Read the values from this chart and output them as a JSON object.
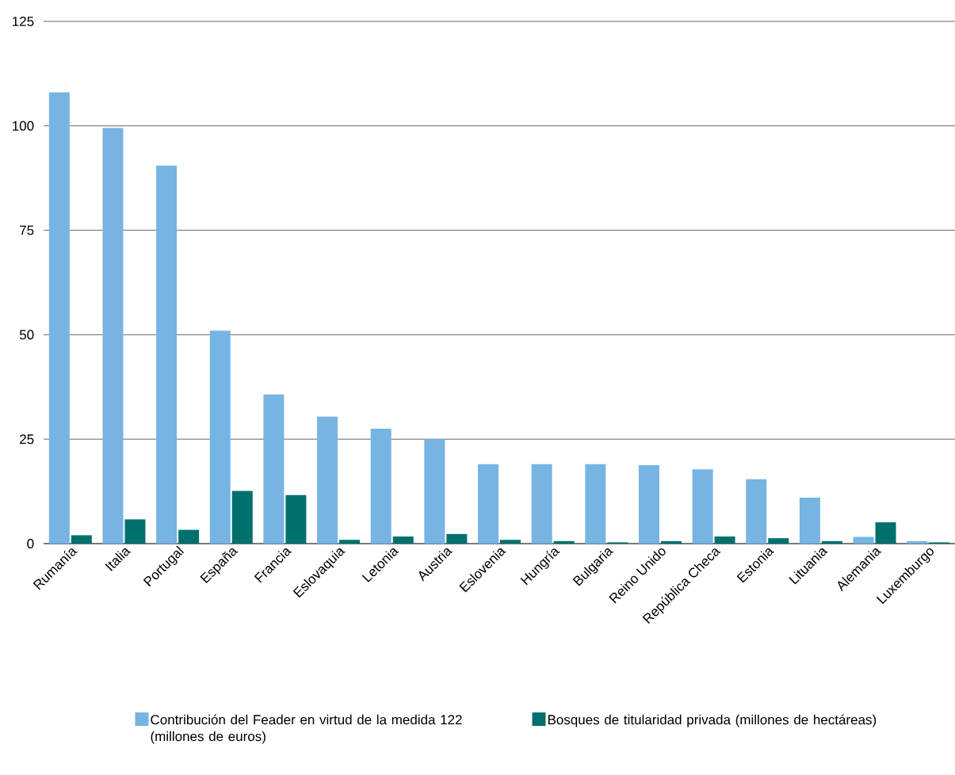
{
  "chart_data": {
    "type": "bar",
    "categories": [
      "Rumanía",
      "Italia",
      "Portugal",
      "España",
      "Francia",
      "Eslovaquia",
      "Letonia",
      "Austria",
      "Eslovenia",
      "Hungría",
      "Bulgaria",
      "Reino Unido",
      "República Checa",
      "Estonia",
      "Lituania",
      "Alemania",
      "Luxemburgo"
    ],
    "series": [
      {
        "name": "Contribución del Feader en virtud de la medida 122 (millones de euros)",
        "color": "#76b4e3",
        "values": [
          108,
          99.5,
          90.5,
          51,
          35.7,
          30.4,
          27.5,
          25,
          19,
          19,
          19,
          18.8,
          17.8,
          15.4,
          11,
          1.6,
          0.6
        ]
      },
      {
        "name": "Bosques de titularidad privada (millones de hectáreas)",
        "color": "#00706e",
        "values": [
          2,
          5.8,
          3.3,
          12.6,
          11.6,
          0.9,
          1.7,
          2.3,
          0.9,
          0.6,
          0.3,
          0.6,
          1.7,
          1.3,
          0.6,
          5.1,
          0.3
        ]
      }
    ],
    "ylim": [
      0,
      125
    ],
    "yticks": [
      0,
      25,
      50,
      75,
      100,
      125
    ],
    "grid": "y",
    "legend": "bottom"
  }
}
